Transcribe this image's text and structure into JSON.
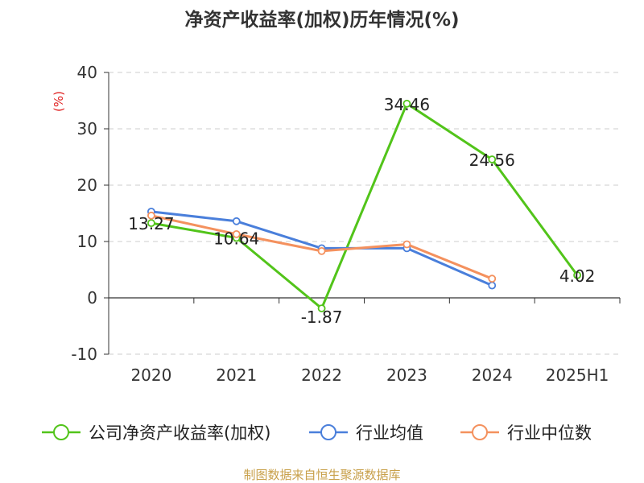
{
  "chart_data": {
    "type": "line",
    "title": "净资产收益率(加权)历年情况(%)",
    "ylabel": "(%)",
    "categories": [
      "2020",
      "2021",
      "2022",
      "2023",
      "2024",
      "2025H1"
    ],
    "ylim": [
      -10,
      40
    ],
    "yticks": [
      -10,
      0,
      10,
      20,
      30,
      40
    ],
    "grid": true,
    "legend_position": "bottom",
    "series": [
      {
        "name": "公司净资产收益率(加权)",
        "color": "#52c41a",
        "values": [
          13.27,
          10.64,
          -1.87,
          34.46,
          24.56,
          4.02
        ],
        "labels": [
          "13.27",
          "10.64",
          "-1.87",
          "34.46",
          "24.56",
          "4.02"
        ]
      },
      {
        "name": "行业均值",
        "color": "#4a7fdb",
        "values": [
          15.3,
          13.6,
          8.8,
          8.8,
          2.2,
          null
        ]
      },
      {
        "name": "行业中位数",
        "color": "#f4915e",
        "values": [
          14.6,
          11.3,
          8.3,
          9.5,
          3.4,
          null
        ]
      }
    ],
    "source": "制图数据来自恒生聚源数据库"
  }
}
